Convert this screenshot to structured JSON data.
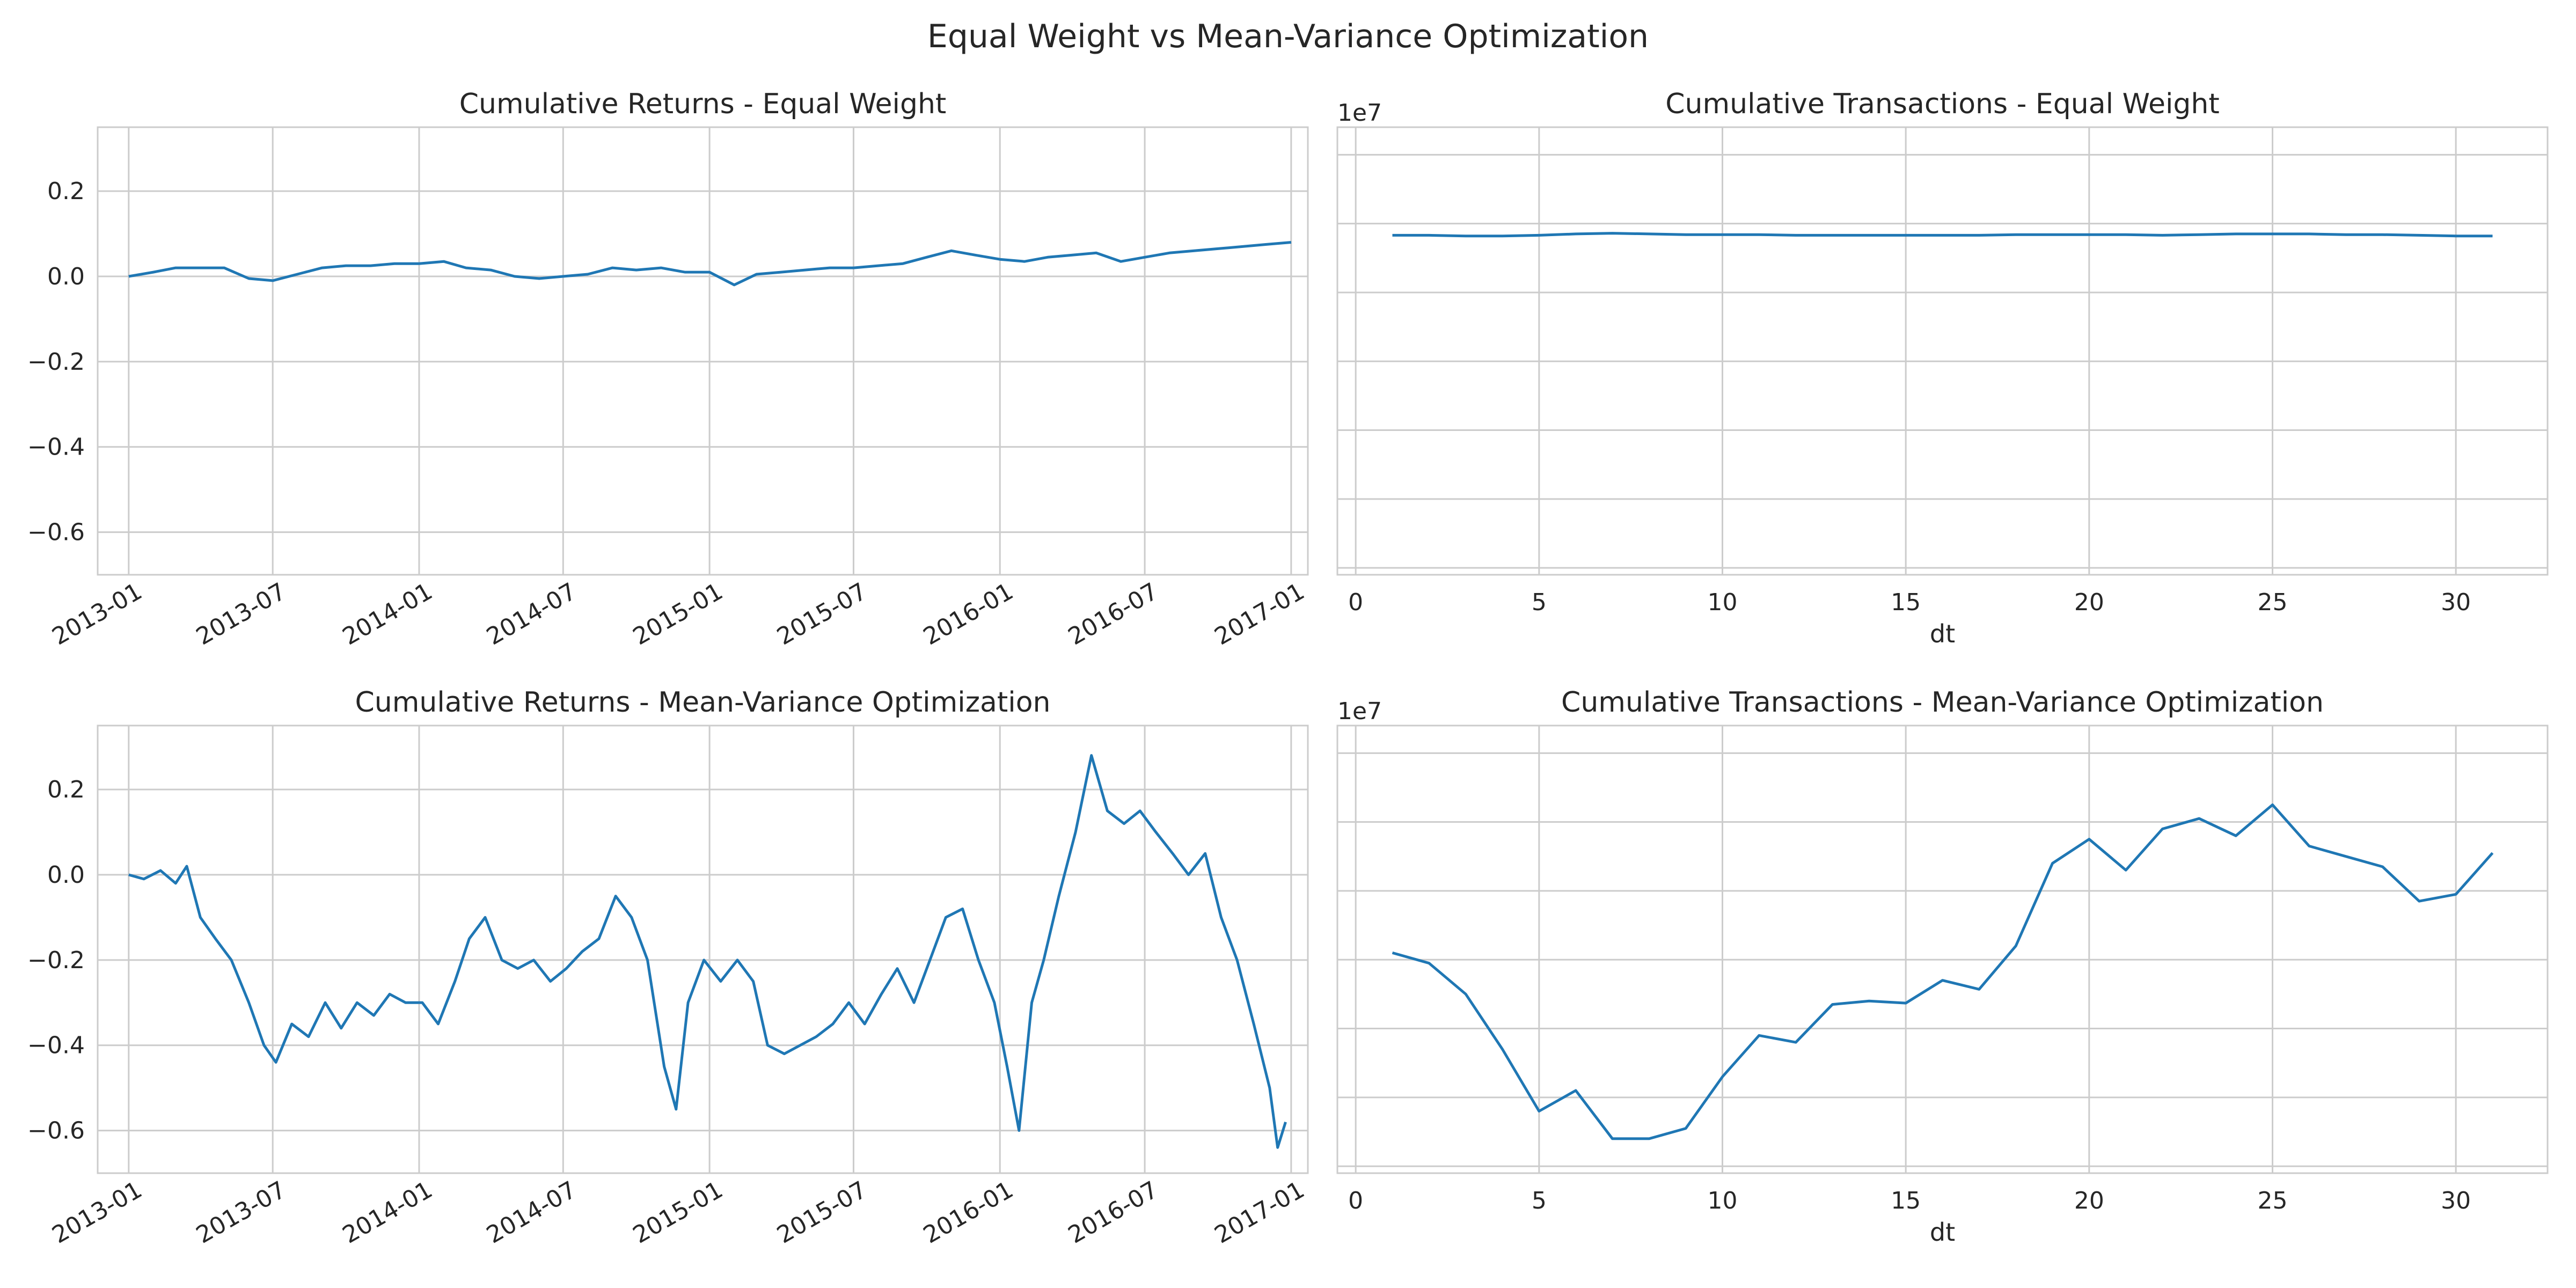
{
  "figure": {
    "title": "Equal Weight vs Mean-Variance Optimization"
  },
  "colors": {
    "line": "#1f77b4",
    "grid": "#cccccc",
    "text": "#262626",
    "background": "#ffffff"
  },
  "chart_data": [
    {
      "id": "ew-returns",
      "type": "line",
      "title": "Cumulative Returns - Equal Weight",
      "xlabel": "",
      "ylabel": "",
      "x_type": "date",
      "xlim": [
        "2012-11-23",
        "2017-01-22"
      ],
      "ylim": [
        -0.7,
        0.35
      ],
      "x_ticks": [
        "2013-01",
        "2013-07",
        "2014-01",
        "2014-07",
        "2015-01",
        "2015-07",
        "2016-01",
        "2016-07",
        "2017-01"
      ],
      "y_ticks": [
        0.2,
        0.0,
        -0.2,
        -0.4,
        -0.6
      ],
      "y_tick_labels": [
        "0.2",
        "0.0",
        "−0.2",
        "−0.4",
        "−0.6"
      ],
      "grid": true,
      "series": [
        {
          "x": [
            "2013-01-01",
            "2013-02-01",
            "2013-03-01",
            "2013-04-01",
            "2013-05-01",
            "2013-06-01",
            "2013-07-01",
            "2013-08-01",
            "2013-09-01",
            "2013-10-01",
            "2013-11-01",
            "2013-12-01",
            "2014-01-01",
            "2014-02-01",
            "2014-03-01",
            "2014-04-01",
            "2014-05-01",
            "2014-06-01",
            "2014-07-01",
            "2014-08-01",
            "2014-09-01",
            "2014-10-01",
            "2014-11-01",
            "2014-12-01",
            "2015-01-01",
            "2015-02-01",
            "2015-03-01",
            "2015-04-01",
            "2015-05-01",
            "2015-06-01",
            "2015-07-01",
            "2015-08-01",
            "2015-09-01",
            "2015-10-01",
            "2015-11-01",
            "2015-12-01",
            "2016-01-01",
            "2016-02-01",
            "2016-03-01",
            "2016-04-01",
            "2016-05-01",
            "2016-06-01",
            "2016-07-01",
            "2016-08-01",
            "2016-09-01",
            "2016-10-01",
            "2016-11-01",
            "2016-12-01",
            "2017-01-01"
          ],
          "y": [
            0.0,
            0.01,
            0.02,
            0.02,
            0.02,
            -0.005,
            -0.01,
            0.005,
            0.02,
            0.025,
            0.025,
            0.03,
            0.03,
            0.035,
            0.02,
            0.015,
            0.0,
            -0.005,
            0.0,
            0.005,
            0.02,
            0.015,
            0.02,
            0.01,
            0.01,
            -0.02,
            0.005,
            0.01,
            0.015,
            0.02,
            0.02,
            0.025,
            0.03,
            0.045,
            0.06,
            0.05,
            0.04,
            0.035,
            0.045,
            0.05,
            0.055,
            0.035,
            0.045,
            0.055,
            0.06,
            0.065,
            0.07,
            0.075,
            0.08
          ]
        }
      ]
    },
    {
      "id": "ew-transactions",
      "type": "line",
      "title": "Cumulative Transactions - Equal Weight",
      "xlabel": "dt",
      "ylabel": "",
      "offset_label": "1e7",
      "xlim": [
        -0.5,
        32.5
      ],
      "ylim": [
        -0.1,
        6.4
      ],
      "x_ticks": [
        0,
        5,
        10,
        15,
        20,
        25,
        30
      ],
      "y_ticks": [
        0,
        1,
        2,
        3,
        4,
        5,
        6
      ],
      "show_y_tick_labels": false,
      "grid": true,
      "series": [
        {
          "x": [
            1,
            2,
            3,
            4,
            5,
            6,
            7,
            8,
            9,
            10,
            11,
            12,
            13,
            14,
            15,
            16,
            17,
            18,
            19,
            20,
            21,
            22,
            23,
            24,
            25,
            26,
            27,
            28,
            29,
            30,
            31
          ],
          "y": [
            4.83,
            4.83,
            4.82,
            4.82,
            4.83,
            4.85,
            4.86,
            4.85,
            4.84,
            4.84,
            4.84,
            4.83,
            4.83,
            4.83,
            4.83,
            4.83,
            4.83,
            4.84,
            4.84,
            4.84,
            4.84,
            4.83,
            4.84,
            4.85,
            4.85,
            4.85,
            4.84,
            4.84,
            4.83,
            4.82,
            4.82
          ]
        }
      ]
    },
    {
      "id": "mv-returns",
      "type": "line",
      "title": "Cumulative Returns - Mean-Variance Optimization",
      "xlabel": "",
      "ylabel": "",
      "x_type": "date",
      "xlim": [
        "2012-11-23",
        "2017-01-22"
      ],
      "ylim": [
        -0.7,
        0.35
      ],
      "x_ticks": [
        "2013-01",
        "2013-07",
        "2014-01",
        "2014-07",
        "2015-01",
        "2015-07",
        "2016-01",
        "2016-07",
        "2017-01"
      ],
      "y_ticks": [
        0.2,
        0.0,
        -0.2,
        -0.4,
        -0.6
      ],
      "y_tick_labels": [
        "0.2",
        "0.0",
        "−0.2",
        "−0.4",
        "−0.6"
      ],
      "grid": true,
      "series": [
        {
          "x": [
            "2013-01-01",
            "2013-01-20",
            "2013-02-10",
            "2013-03-01",
            "2013-03-15",
            "2013-04-01",
            "2013-04-20",
            "2013-05-10",
            "2013-06-01",
            "2013-06-20",
            "2013-07-05",
            "2013-07-25",
            "2013-08-15",
            "2013-09-05",
            "2013-09-25",
            "2013-10-15",
            "2013-11-05",
            "2013-11-25",
            "2013-12-15",
            "2014-01-05",
            "2014-01-25",
            "2014-02-15",
            "2014-03-05",
            "2014-03-25",
            "2014-04-15",
            "2014-05-05",
            "2014-05-25",
            "2014-06-15",
            "2014-07-05",
            "2014-07-25",
            "2014-08-15",
            "2014-09-05",
            "2014-09-25",
            "2014-10-15",
            "2014-11-05",
            "2014-11-20",
            "2014-12-05",
            "2014-12-25",
            "2015-01-15",
            "2015-02-05",
            "2015-02-25",
            "2015-03-15",
            "2015-04-05",
            "2015-04-25",
            "2015-05-15",
            "2015-06-05",
            "2015-06-25",
            "2015-07-15",
            "2015-08-05",
            "2015-08-25",
            "2015-09-15",
            "2015-10-05",
            "2015-10-25",
            "2015-11-15",
            "2015-12-05",
            "2015-12-25",
            "2016-01-10",
            "2016-01-25",
            "2016-02-10",
            "2016-02-25",
            "2016-03-15",
            "2016-04-05",
            "2016-04-25",
            "2016-05-15",
            "2016-06-05",
            "2016-06-25",
            "2016-07-15",
            "2016-08-05",
            "2016-08-25",
            "2016-09-15",
            "2016-10-05",
            "2016-10-25",
            "2016-11-15",
            "2016-12-05",
            "2016-12-15",
            "2016-12-25"
          ],
          "y": [
            0.0,
            -0.01,
            0.01,
            -0.02,
            0.02,
            -0.1,
            -0.15,
            -0.2,
            -0.3,
            -0.4,
            -0.44,
            -0.35,
            -0.38,
            -0.3,
            -0.36,
            -0.3,
            -0.33,
            -0.28,
            -0.3,
            -0.3,
            -0.35,
            -0.25,
            -0.15,
            -0.1,
            -0.2,
            -0.22,
            -0.2,
            -0.25,
            -0.22,
            -0.18,
            -0.15,
            -0.05,
            -0.1,
            -0.2,
            -0.45,
            -0.55,
            -0.3,
            -0.2,
            -0.25,
            -0.2,
            -0.25,
            -0.4,
            -0.42,
            -0.4,
            -0.38,
            -0.35,
            -0.3,
            -0.35,
            -0.28,
            -0.22,
            -0.3,
            -0.2,
            -0.1,
            -0.08,
            -0.2,
            -0.3,
            -0.45,
            -0.6,
            -0.3,
            -0.2,
            -0.05,
            0.1,
            0.28,
            0.15,
            0.12,
            0.15,
            0.1,
            0.05,
            0.0,
            0.05,
            -0.1,
            -0.2,
            -0.35,
            -0.5,
            -0.64,
            -0.58
          ]
        }
      ]
    },
    {
      "id": "mv-transactions",
      "type": "line",
      "title": "Cumulative Transactions - Mean-Variance Optimization",
      "xlabel": "dt",
      "ylabel": "",
      "offset_label": "1e7",
      "xlim": [
        -0.5,
        32.5
      ],
      "ylim": [
        -0.1,
        6.4
      ],
      "x_ticks": [
        0,
        5,
        10,
        15,
        20,
        25,
        30
      ],
      "y_ticks": [
        0,
        1,
        2,
        3,
        4,
        5,
        6
      ],
      "show_y_tick_labels": false,
      "grid": true,
      "series": [
        {
          "x": [
            1,
            2,
            3,
            4,
            5,
            6,
            7,
            8,
            9,
            10,
            11,
            12,
            13,
            14,
            15,
            16,
            17,
            18,
            19,
            20,
            21,
            22,
            23,
            24,
            25,
            26,
            27,
            28,
            29,
            30,
            31
          ],
          "y": [
            3.1,
            2.95,
            2.5,
            1.7,
            0.8,
            1.1,
            0.4,
            0.4,
            0.55,
            1.3,
            1.9,
            1.8,
            2.35,
            2.4,
            2.37,
            2.7,
            2.57,
            3.2,
            4.4,
            4.75,
            4.3,
            4.9,
            5.05,
            4.8,
            5.25,
            4.65,
            4.5,
            4.35,
            3.85,
            3.95,
            4.55
          ]
        }
      ]
    }
  ]
}
